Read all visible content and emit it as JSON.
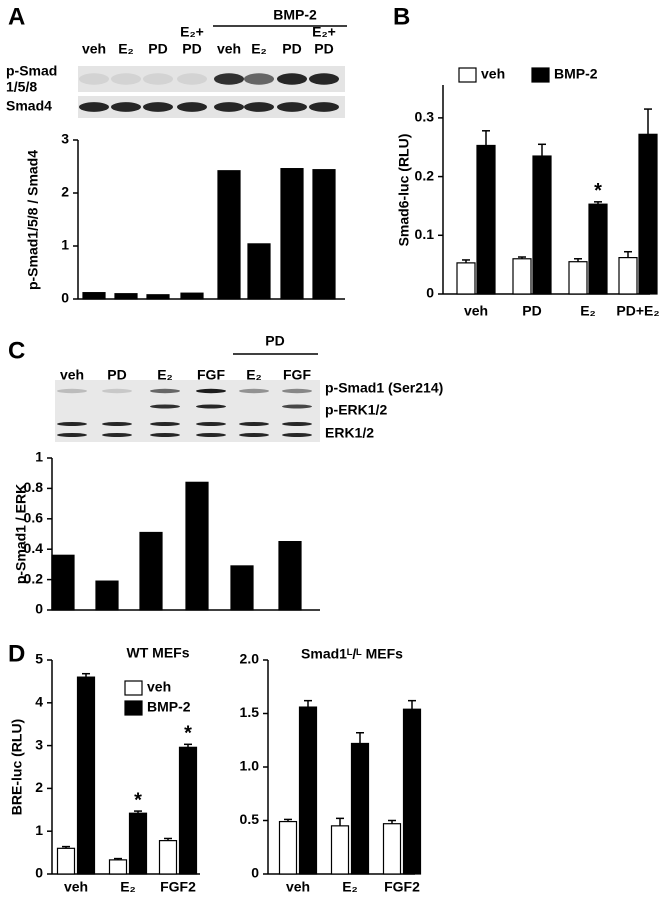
{
  "chart_data": [
    {
      "type": "bar",
      "panel": "A",
      "group_label": "BMP-2",
      "blot_rows": [
        [
          "p-Smad",
          "1/5/8"
        ],
        [
          "Smad4"
        ]
      ],
      "categories": [
        [
          "veh"
        ],
        [
          "E₂"
        ],
        [
          "PD"
        ],
        [
          "E₂+",
          "PD"
        ],
        [
          "veh"
        ],
        [
          "E₂"
        ],
        [
          "PD"
        ],
        [
          "E₂+",
          "PD"
        ]
      ],
      "values": [
        0.12,
        0.1,
        0.08,
        0.11,
        2.42,
        1.04,
        2.46,
        2.44
      ],
      "color": "#000000",
      "y_label": "p-Smad1/5/8 / Smad4",
      "ylim": [
        0,
        3
      ],
      "yticks": [
        0,
        1,
        2,
        3
      ]
    },
    {
      "type": "bar",
      "panel": "B",
      "y_label": "Smad6-luc (RLU)",
      "categories": [
        [
          "veh"
        ],
        [
          "PD"
        ],
        [
          "E₂"
        ],
        [
          "PD+E₂"
        ]
      ],
      "series": [
        {
          "name": "veh",
          "color": "#ffffff",
          "values": [
            0.053,
            0.06,
            0.055,
            0.062
          ],
          "errors": [
            0.005,
            0.003,
            0.005,
            0.01
          ]
        },
        {
          "name": "BMP-2",
          "color": "#000000",
          "values": [
            0.253,
            0.235,
            0.153,
            0.272
          ],
          "errors": [
            0.025,
            0.02,
            0.004,
            0.043
          ]
        }
      ],
      "annotations": [
        {
          "text": "*",
          "category": 2
        }
      ],
      "ylim": [
        0,
        0.356
      ],
      "yticks": [
        0,
        0.1,
        0.2,
        0.3
      ]
    },
    {
      "type": "bar",
      "panel": "C",
      "group_label": "PD",
      "blot_rows": [
        [
          "p-Smad1 (Ser214)"
        ],
        [
          "p-ERK1/2"
        ],
        [
          "ERK1/2"
        ]
      ],
      "categories": [
        [
          "veh"
        ],
        [
          "PD"
        ],
        [
          "E₂"
        ],
        [
          "FGF"
        ],
        [
          "E₂"
        ],
        [
          "FGF"
        ]
      ],
      "values": [
        0.36,
        0.19,
        0.51,
        0.84,
        0.29,
        0.45
      ],
      "color": "#000000",
      "y_label": "p-Smad1 / ERK",
      "ylim": [
        0,
        1
      ],
      "yticks": [
        0,
        0.2,
        0.4,
        0.6,
        0.8,
        1
      ]
    },
    {
      "type": "bar",
      "panel": "D",
      "title": "WT MEFs",
      "y_label": "BRE-luc (RLU)",
      "categories": [
        [
          "veh"
        ],
        [
          "E₂"
        ],
        [
          "FGF2"
        ]
      ],
      "series": [
        {
          "name": "veh",
          "color": "#ffffff",
          "values": [
            0.6,
            0.33,
            0.78
          ],
          "errors": [
            0.04,
            0.03,
            0.05
          ]
        },
        {
          "name": "BMP-2",
          "color": "#000000",
          "values": [
            4.6,
            1.42,
            2.96
          ],
          "errors": [
            0.08,
            0.05,
            0.07
          ]
        }
      ],
      "annotations": [
        {
          "text": "*",
          "category": 1
        },
        {
          "text": "*",
          "category": 2
        }
      ],
      "ylim": [
        0,
        5
      ],
      "yticks": [
        0,
        1,
        2,
        3,
        4,
        5
      ]
    },
    {
      "type": "bar",
      "title": "Smad1ᴸ/ᴸ MEFs",
      "categories": [
        [
          "veh"
        ],
        [
          "E₂"
        ],
        [
          "FGF2"
        ]
      ],
      "series": [
        {
          "color": "#ffffff",
          "values": [
            0.49,
            0.45,
            0.47
          ],
          "errors": [
            0.02,
            0.07,
            0.03
          ]
        },
        {
          "color": "#000000",
          "values": [
            1.56,
            1.22,
            1.54
          ],
          "errors": [
            0.06,
            0.1,
            0.08
          ]
        }
      ],
      "ylim": [
        0,
        2
      ],
      "yticks": [
        0,
        0.5,
        {
          "value": 1,
          "label": "1.0"
        },
        1.5,
        {
          "value": 2,
          "label": "2.0"
        }
      ]
    }
  ]
}
